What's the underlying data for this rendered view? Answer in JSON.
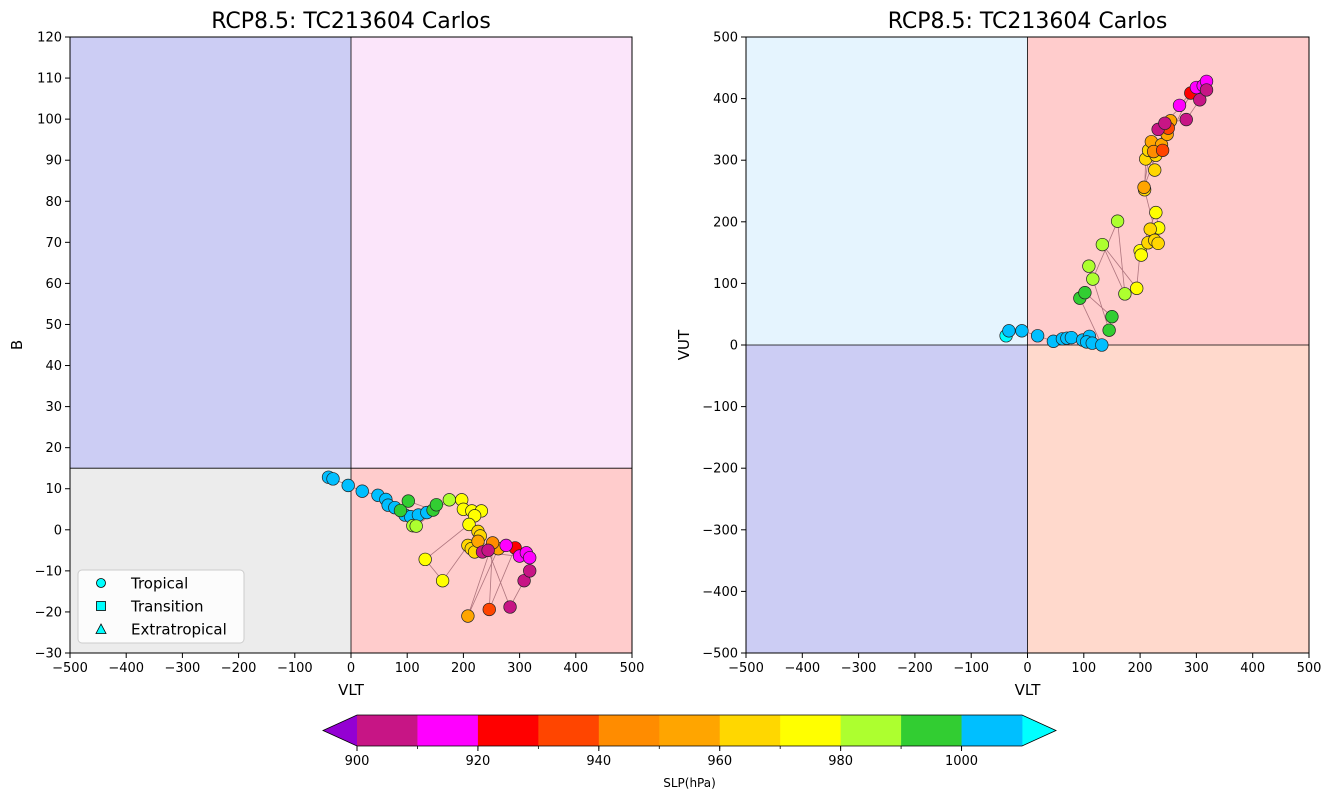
{
  "chart_data": [
    {
      "type": "scatter",
      "title": "RCP8.5: TC213604 Carlos",
      "xlabel": "VLT",
      "ylabel": "B",
      "xlim": [
        -500,
        500
      ],
      "ylim": [
        -30,
        120
      ],
      "xticks": [
        -500,
        -400,
        -300,
        -200,
        -100,
        0,
        100,
        200,
        300,
        400,
        500
      ],
      "yticks": [
        -30,
        -20,
        -10,
        0,
        10,
        20,
        30,
        40,
        50,
        60,
        70,
        80,
        90,
        100,
        110,
        120
      ],
      "threshold_y": 15,
      "quadrants": [
        {
          "x": [
            -500,
            0
          ],
          "y": [
            15,
            120
          ],
          "color": "#cccdf4"
        },
        {
          "x": [
            0,
            500
          ],
          "y": [
            15,
            120
          ],
          "color": "#fbe5fa"
        },
        {
          "x": [
            -500,
            0
          ],
          "y": [
            -30,
            15
          ],
          "color": "#ececec"
        },
        {
          "x": [
            0,
            500
          ],
          "y": [
            -30,
            15
          ],
          "color": "#ffcccc"
        }
      ],
      "legend": {
        "placement": "lower-left",
        "entries": [
          {
            "label": "Tropical",
            "marker": "circle"
          },
          {
            "label": "Transition",
            "marker": "square"
          },
          {
            "label": "Extratropical",
            "marker": "triangle"
          }
        ],
        "marker_color": "#00ffff"
      },
      "points": [
        {
          "x": -40,
          "y": 12.8,
          "slp": 1005
        },
        {
          "x": -32,
          "y": 12.4,
          "slp": 1005
        },
        {
          "x": -5,
          "y": 10.8,
          "slp": 1005
        },
        {
          "x": 20,
          "y": 9.4,
          "slp": 1005
        },
        {
          "x": 48,
          "y": 8.4,
          "slp": 1005
        },
        {
          "x": 62,
          "y": 7.4,
          "slp": 1005
        },
        {
          "x": 66,
          "y": 6.0,
          "slp": 1005
        },
        {
          "x": 78,
          "y": 5.4,
          "slp": 1005
        },
        {
          "x": 96,
          "y": 3.6,
          "slp": 1005
        },
        {
          "x": 106,
          "y": 3.2,
          "slp": 1005
        },
        {
          "x": 120,
          "y": 3.6,
          "slp": 1005
        },
        {
          "x": 135,
          "y": 4.2,
          "slp": 1005
        },
        {
          "x": 88,
          "y": 4.7,
          "slp": 995
        },
        {
          "x": 102,
          "y": 7.0,
          "slp": 995
        },
        {
          "x": 146,
          "y": 4.8,
          "slp": 995
        },
        {
          "x": 152,
          "y": 6.1,
          "slp": 995
        },
        {
          "x": 110,
          "y": 1.0,
          "slp": 985
        },
        {
          "x": 116,
          "y": 0.9,
          "slp": 985
        },
        {
          "x": 175,
          "y": 7.3,
          "slp": 985
        },
        {
          "x": 197,
          "y": 7.3,
          "slp": 975
        },
        {
          "x": 200,
          "y": 5.0,
          "slp": 975
        },
        {
          "x": 215,
          "y": 4.6,
          "slp": 975
        },
        {
          "x": 232,
          "y": 4.6,
          "slp": 975
        },
        {
          "x": 220,
          "y": 3.4,
          "slp": 975
        },
        {
          "x": 210,
          "y": 1.3,
          "slp": 975
        },
        {
          "x": 132,
          "y": -7.2,
          "slp": 975
        },
        {
          "x": 163,
          "y": -12.4,
          "slp": 975
        },
        {
          "x": 226,
          "y": -0.4,
          "slp": 965
        },
        {
          "x": 230,
          "y": -1.5,
          "slp": 965
        },
        {
          "x": 208,
          "y": -3.8,
          "slp": 965
        },
        {
          "x": 214,
          "y": -4.6,
          "slp": 965
        },
        {
          "x": 220,
          "y": -5.4,
          "slp": 965
        },
        {
          "x": 226,
          "y": -2.8,
          "slp": 955
        },
        {
          "x": 262,
          "y": -4.6,
          "slp": 955
        },
        {
          "x": 208,
          "y": -21.0,
          "slp": 955
        },
        {
          "x": 252,
          "y": -3.2,
          "slp": 945
        },
        {
          "x": 246,
          "y": -19.4,
          "slp": 935
        },
        {
          "x": 292,
          "y": -4.4,
          "slp": 925
        },
        {
          "x": 276,
          "y": -3.8,
          "slp": 915
        },
        {
          "x": 300,
          "y": -6.4,
          "slp": 915
        },
        {
          "x": 312,
          "y": -5.6,
          "slp": 915
        },
        {
          "x": 318,
          "y": -6.8,
          "slp": 915
        },
        {
          "x": 234,
          "y": -5.4,
          "slp": 905
        },
        {
          "x": 244,
          "y": -5.0,
          "slp": 905
        },
        {
          "x": 283,
          "y": -18.8,
          "slp": 905
        },
        {
          "x": 308,
          "y": -12.4,
          "slp": 905
        },
        {
          "x": 318,
          "y": -10.0,
          "slp": 905
        }
      ]
    },
    {
      "type": "scatter",
      "title": "RCP8.5: TC213604 Carlos",
      "xlabel": "VLT",
      "ylabel": "VUT",
      "xlim": [
        -500,
        500
      ],
      "ylim": [
        -500,
        500
      ],
      "xticks": [
        -500,
        -400,
        -300,
        -200,
        -100,
        0,
        100,
        200,
        300,
        400,
        500
      ],
      "yticks": [
        -500,
        -400,
        -300,
        -200,
        -100,
        0,
        100,
        200,
        300,
        400,
        500
      ],
      "quadrants": [
        {
          "x": [
            -500,
            0
          ],
          "y": [
            0,
            500
          ],
          "color": "#e5f4fe"
        },
        {
          "x": [
            0,
            500
          ],
          "y": [
            0,
            500
          ],
          "color": "#ffcccc"
        },
        {
          "x": [
            -500,
            0
          ],
          "y": [
            -500,
            0
          ],
          "color": "#cccdf4"
        },
        {
          "x": [
            0,
            500
          ],
          "y": [
            -500,
            0
          ],
          "color": "#ffd9cc"
        }
      ],
      "points": [
        {
          "x": -38,
          "y": 15,
          "slp": 1015
        },
        {
          "x": -33,
          "y": 23,
          "slp": 1005
        },
        {
          "x": -10,
          "y": 23,
          "slp": 1005
        },
        {
          "x": 18,
          "y": 15,
          "slp": 1005
        },
        {
          "x": 46,
          "y": 6,
          "slp": 1005
        },
        {
          "x": 62,
          "y": 10,
          "slp": 1005
        },
        {
          "x": 70,
          "y": 11,
          "slp": 1005
        },
        {
          "x": 78,
          "y": 12,
          "slp": 1005
        },
        {
          "x": 98,
          "y": 8,
          "slp": 1005
        },
        {
          "x": 110,
          "y": 14,
          "slp": 1005
        },
        {
          "x": 105,
          "y": 5,
          "slp": 1005
        },
        {
          "x": 115,
          "y": 3,
          "slp": 1005
        },
        {
          "x": 132,
          "y": 0,
          "slp": 1005
        },
        {
          "x": 93,
          "y": 76,
          "slp": 995
        },
        {
          "x": 102,
          "y": 85,
          "slp": 995
        },
        {
          "x": 150,
          "y": 46,
          "slp": 995
        },
        {
          "x": 145,
          "y": 24,
          "slp": 995
        },
        {
          "x": 109,
          "y": 128,
          "slp": 985
        },
        {
          "x": 116,
          "y": 107,
          "slp": 985
        },
        {
          "x": 160,
          "y": 201,
          "slp": 985
        },
        {
          "x": 173,
          "y": 83,
          "slp": 985
        },
        {
          "x": 133,
          "y": 163,
          "slp": 985
        },
        {
          "x": 194,
          "y": 92,
          "slp": 975
        },
        {
          "x": 200,
          "y": 153,
          "slp": 975
        },
        {
          "x": 228,
          "y": 215,
          "slp": 975
        },
        {
          "x": 233,
          "y": 190,
          "slp": 975
        },
        {
          "x": 202,
          "y": 146,
          "slp": 975
        },
        {
          "x": 214,
          "y": 166,
          "slp": 965
        },
        {
          "x": 218,
          "y": 188,
          "slp": 965
        },
        {
          "x": 226,
          "y": 170,
          "slp": 965
        },
        {
          "x": 232,
          "y": 165,
          "slp": 965
        },
        {
          "x": 208,
          "y": 252,
          "slp": 965
        },
        {
          "x": 210,
          "y": 302,
          "slp": 965
        },
        {
          "x": 226,
          "y": 284,
          "slp": 965
        },
        {
          "x": 215,
          "y": 316,
          "slp": 965
        },
        {
          "x": 228,
          "y": 308,
          "slp": 965
        },
        {
          "x": 207,
          "y": 256,
          "slp": 955
        },
        {
          "x": 220,
          "y": 330,
          "slp": 955
        },
        {
          "x": 238,
          "y": 325,
          "slp": 955
        },
        {
          "x": 248,
          "y": 342,
          "slp": 955
        },
        {
          "x": 254,
          "y": 364,
          "slp": 955
        },
        {
          "x": 224,
          "y": 314,
          "slp": 945
        },
        {
          "x": 250,
          "y": 352,
          "slp": 935
        },
        {
          "x": 240,
          "y": 316,
          "slp": 935
        },
        {
          "x": 290,
          "y": 409,
          "slp": 925
        },
        {
          "x": 270,
          "y": 389,
          "slp": 915
        },
        {
          "x": 300,
          "y": 418,
          "slp": 915
        },
        {
          "x": 312,
          "y": 421,
          "slp": 915
        },
        {
          "x": 318,
          "y": 428,
          "slp": 915
        },
        {
          "x": 232,
          "y": 350,
          "slp": 905
        },
        {
          "x": 244,
          "y": 360,
          "slp": 905
        },
        {
          "x": 282,
          "y": 366,
          "slp": 905
        },
        {
          "x": 306,
          "y": 398,
          "slp": 905
        },
        {
          "x": 318,
          "y": 414,
          "slp": 905
        }
      ]
    }
  ],
  "colorbar": {
    "label": "SLP(hPa)",
    "ticks": [
      "900",
      "920",
      "940",
      "960",
      "980",
      "1000"
    ],
    "tick_values": [
      900,
      920,
      940,
      960,
      980,
      1000
    ],
    "min": 900,
    "max": 1010,
    "levels": [
      {
        "from": 900,
        "to": 910,
        "color": "#c71585"
      },
      {
        "from": 910,
        "to": 920,
        "color": "#ff00ff"
      },
      {
        "from": 920,
        "to": 930,
        "color": "#ff0000"
      },
      {
        "from": 930,
        "to": 940,
        "color": "#ff4500"
      },
      {
        "from": 940,
        "to": 950,
        "color": "#ff8c00"
      },
      {
        "from": 950,
        "to": 960,
        "color": "#ffa500"
      },
      {
        "from": 960,
        "to": 970,
        "color": "#ffd700"
      },
      {
        "from": 970,
        "to": 980,
        "color": "#ffff00"
      },
      {
        "from": 980,
        "to": 990,
        "color": "#adff2f"
      },
      {
        "from": 990,
        "to": 1000,
        "color": "#32cd32"
      },
      {
        "from": 1000,
        "to": 1010,
        "color": "#00bfff"
      }
    ],
    "under_color": "#9400d3",
    "over_color": "#00ffff"
  }
}
